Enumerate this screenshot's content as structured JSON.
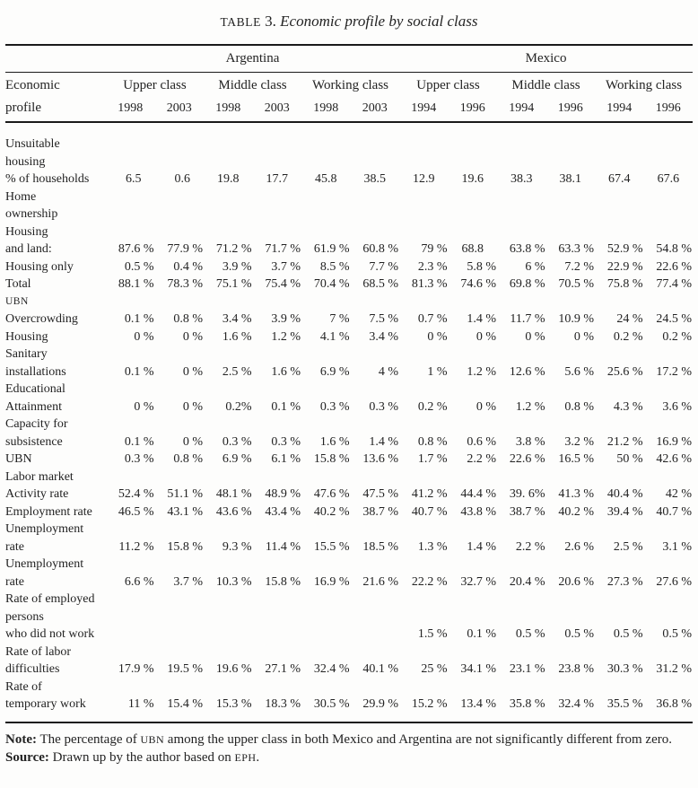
{
  "title": {
    "label_sc": "TABLE",
    "label_num": "3.",
    "text": "Economic profile by social class"
  },
  "table": {
    "header": {
      "countries": [
        "Argentina",
        "Mexico"
      ],
      "stub_line1": "Economic",
      "stub_line2": "profile",
      "class_groups": [
        "Upper class",
        "Middle class",
        "Working class",
        "Upper class",
        "Middle class",
        "Working class"
      ],
      "years": [
        "1998",
        "2003",
        "1998",
        "2003",
        "1998",
        "2003",
        "1994",
        "1996",
        "1994",
        "1996",
        "1994",
        "1996"
      ]
    },
    "rows": [
      {
        "label": "Unsuitable"
      },
      {
        "label": "housing"
      },
      {
        "label": "% of households",
        "values": [
          "6.5",
          "0.6",
          "19.8",
          "17.7",
          "45.8",
          "38.5",
          "12.9",
          "19.6",
          "38.3",
          "38.1",
          "67.4",
          "67.6"
        ]
      },
      {
        "label": "Home"
      },
      {
        "label": "ownership"
      },
      {
        "label": "Housing"
      },
      {
        "label": "and land:",
        "values": [
          "87.6 %",
          "77.9 %",
          "71.2 %",
          "71.7 %",
          "61.9 %",
          "60.8 %",
          "79 %",
          "68.8",
          "63.8 %",
          "63.3 %",
          "52.9 %",
          "54.8 %"
        ]
      },
      {
        "label": "Housing only",
        "values": [
          "0.5 %",
          "0.4 %",
          "3.9 %",
          "3.7 %",
          "8.5 %",
          "7.7 %",
          "2.3 %",
          "5.8 %",
          "6 %",
          "7.2 %",
          "22.9 %",
          "22.6 %"
        ]
      },
      {
        "label": "Total",
        "values": [
          "88.1 %",
          "78.3 %",
          "75.1 %",
          "75.4 %",
          "70.4 %",
          "68.5 %",
          "81.3 %",
          "74.6 %",
          "69.8 %",
          "70.5 %",
          "75.8 %",
          "77.4 %"
        ]
      },
      {
        "label": "UBN",
        "style": "smallcaps"
      },
      {
        "label": "Overcrowding",
        "values": [
          "0.1 %",
          "0.8 %",
          "3.4 %",
          "3.9 %",
          "7 %",
          "7.5 %",
          "0.7 %",
          "1.4 %",
          "11.7 %",
          "10.9 %",
          "24 %",
          "24.5 %"
        ]
      },
      {
        "label": "Housing",
        "values": [
          "0 %",
          "0 %",
          "1.6 %",
          "1.2 %",
          "4.1 %",
          "3.4 %",
          "0 %",
          "0 %",
          "0 %",
          "0 %",
          "0.2 %",
          "0.2 %"
        ]
      },
      {
        "label": "Sanitary"
      },
      {
        "label": "installations",
        "values": [
          "0.1 %",
          "0 %",
          "2.5 %",
          "1.6 %",
          "6.9 %",
          "4 %",
          "1 %",
          "1.2 %",
          "12.6 %",
          "5.6 %",
          "25.6 %",
          "17.2 %"
        ]
      },
      {
        "label": "Educational"
      },
      {
        "label": "Attainment",
        "values": [
          "0 %",
          "0 %",
          "0.2%",
          "0.1 %",
          "0.3 %",
          "0.3 %",
          "0.2 %",
          "0 %",
          "1.2 %",
          "0.8 %",
          "4.3 %",
          "3.6 %"
        ]
      },
      {
        "label": "Capacity for"
      },
      {
        "label": "subsistence",
        "values": [
          "0.1 %",
          "0 %",
          "0.3 %",
          "0.3 %",
          "1.6 %",
          "1.4 %",
          "0.8 %",
          "0.6 %",
          "3.8 %",
          "3.2 %",
          "21.2 %",
          "16.9 %"
        ]
      },
      {
        "label": "UBN",
        "values": [
          "0.3 %",
          "0.8 %",
          "6.9 %",
          "6.1 %",
          "15.8 %",
          "13.6 %",
          "1.7 %",
          "2.2 %",
          "22.6 %",
          "16.5 %",
          "50 %",
          "42.6 %"
        ]
      },
      {
        "label": "Labor market"
      },
      {
        "label": "Activity rate",
        "values": [
          "52.4 %",
          "51.1 %",
          "48.1 %",
          "48.9 %",
          "47.6 %",
          "47.5 %",
          "41.2 %",
          "44.4 %",
          "39. 6%",
          "41.3 %",
          "40.4 %",
          "42 %"
        ]
      },
      {
        "label": "Employment rate",
        "values": [
          "46.5 %",
          "43.1 %",
          "43.6 %",
          "43.4 %",
          "40.2 %",
          "38.7 %",
          "40.7 %",
          "43.8 %",
          "38.7 %",
          "40.2 %",
          "39.4 %",
          "40.7 %"
        ]
      },
      {
        "label": "Unemployment"
      },
      {
        "label": "rate",
        "values": [
          "11.2 %",
          "15.8 %",
          "9.3 %",
          "11.4 %",
          "15.5 %",
          "18.5 %",
          "1.3 %",
          "1.4 %",
          "2.2 %",
          "2.6 %",
          "2.5 %",
          "3.1 %"
        ]
      },
      {
        "label": "Unemployment"
      },
      {
        "label": "rate",
        "values": [
          "6.6 %",
          "3.7 %",
          "10.3 %",
          "15.8 %",
          "16.9 %",
          "21.6 %",
          "22.2 %",
          "32.7 %",
          "20.4 %",
          "20.6 %",
          "27.3 %",
          "27.6 %"
        ]
      },
      {
        "label": "Rate of employed"
      },
      {
        "label": "persons"
      },
      {
        "label": "who did not work",
        "values": [
          "",
          "",
          "",
          "",
          "",
          "",
          "1.5 %",
          "0.1 %",
          "0.5 %",
          "0.5 %",
          "0.5 %",
          "0.5 %"
        ]
      },
      {
        "label": "Rate of labor"
      },
      {
        "label": "difficulties",
        "values": [
          "17.9 %",
          "19.5 %",
          "19.6 %",
          "27.1 %",
          "32.4 %",
          "40.1 %",
          "25 %",
          "34.1 %",
          "23.1 %",
          "23.8 %",
          "30.3 %",
          "31.2 %"
        ]
      },
      {
        "label": "Rate of"
      },
      {
        "label": "temporary work",
        "values": [
          "11 %",
          "15.4 %",
          "15.3 %",
          "18.3 %",
          "30.5 %",
          "29.9 %",
          "15.2 %",
          "13.4 %",
          "35.8 %",
          "32.4 %",
          "35.5 %",
          "36.8 %"
        ]
      }
    ]
  },
  "notes": {
    "note_label": "Note:",
    "note_part1": " The percentage of ",
    "note_acronym": "UBN",
    "note_part2": " among the upper class in both Mexico and Argentina are not significantly different from zero.",
    "source_label": "Source:",
    "source_part1": " Drawn up by the author based on ",
    "source_acronym": "EPH",
    "source_part2": "."
  }
}
